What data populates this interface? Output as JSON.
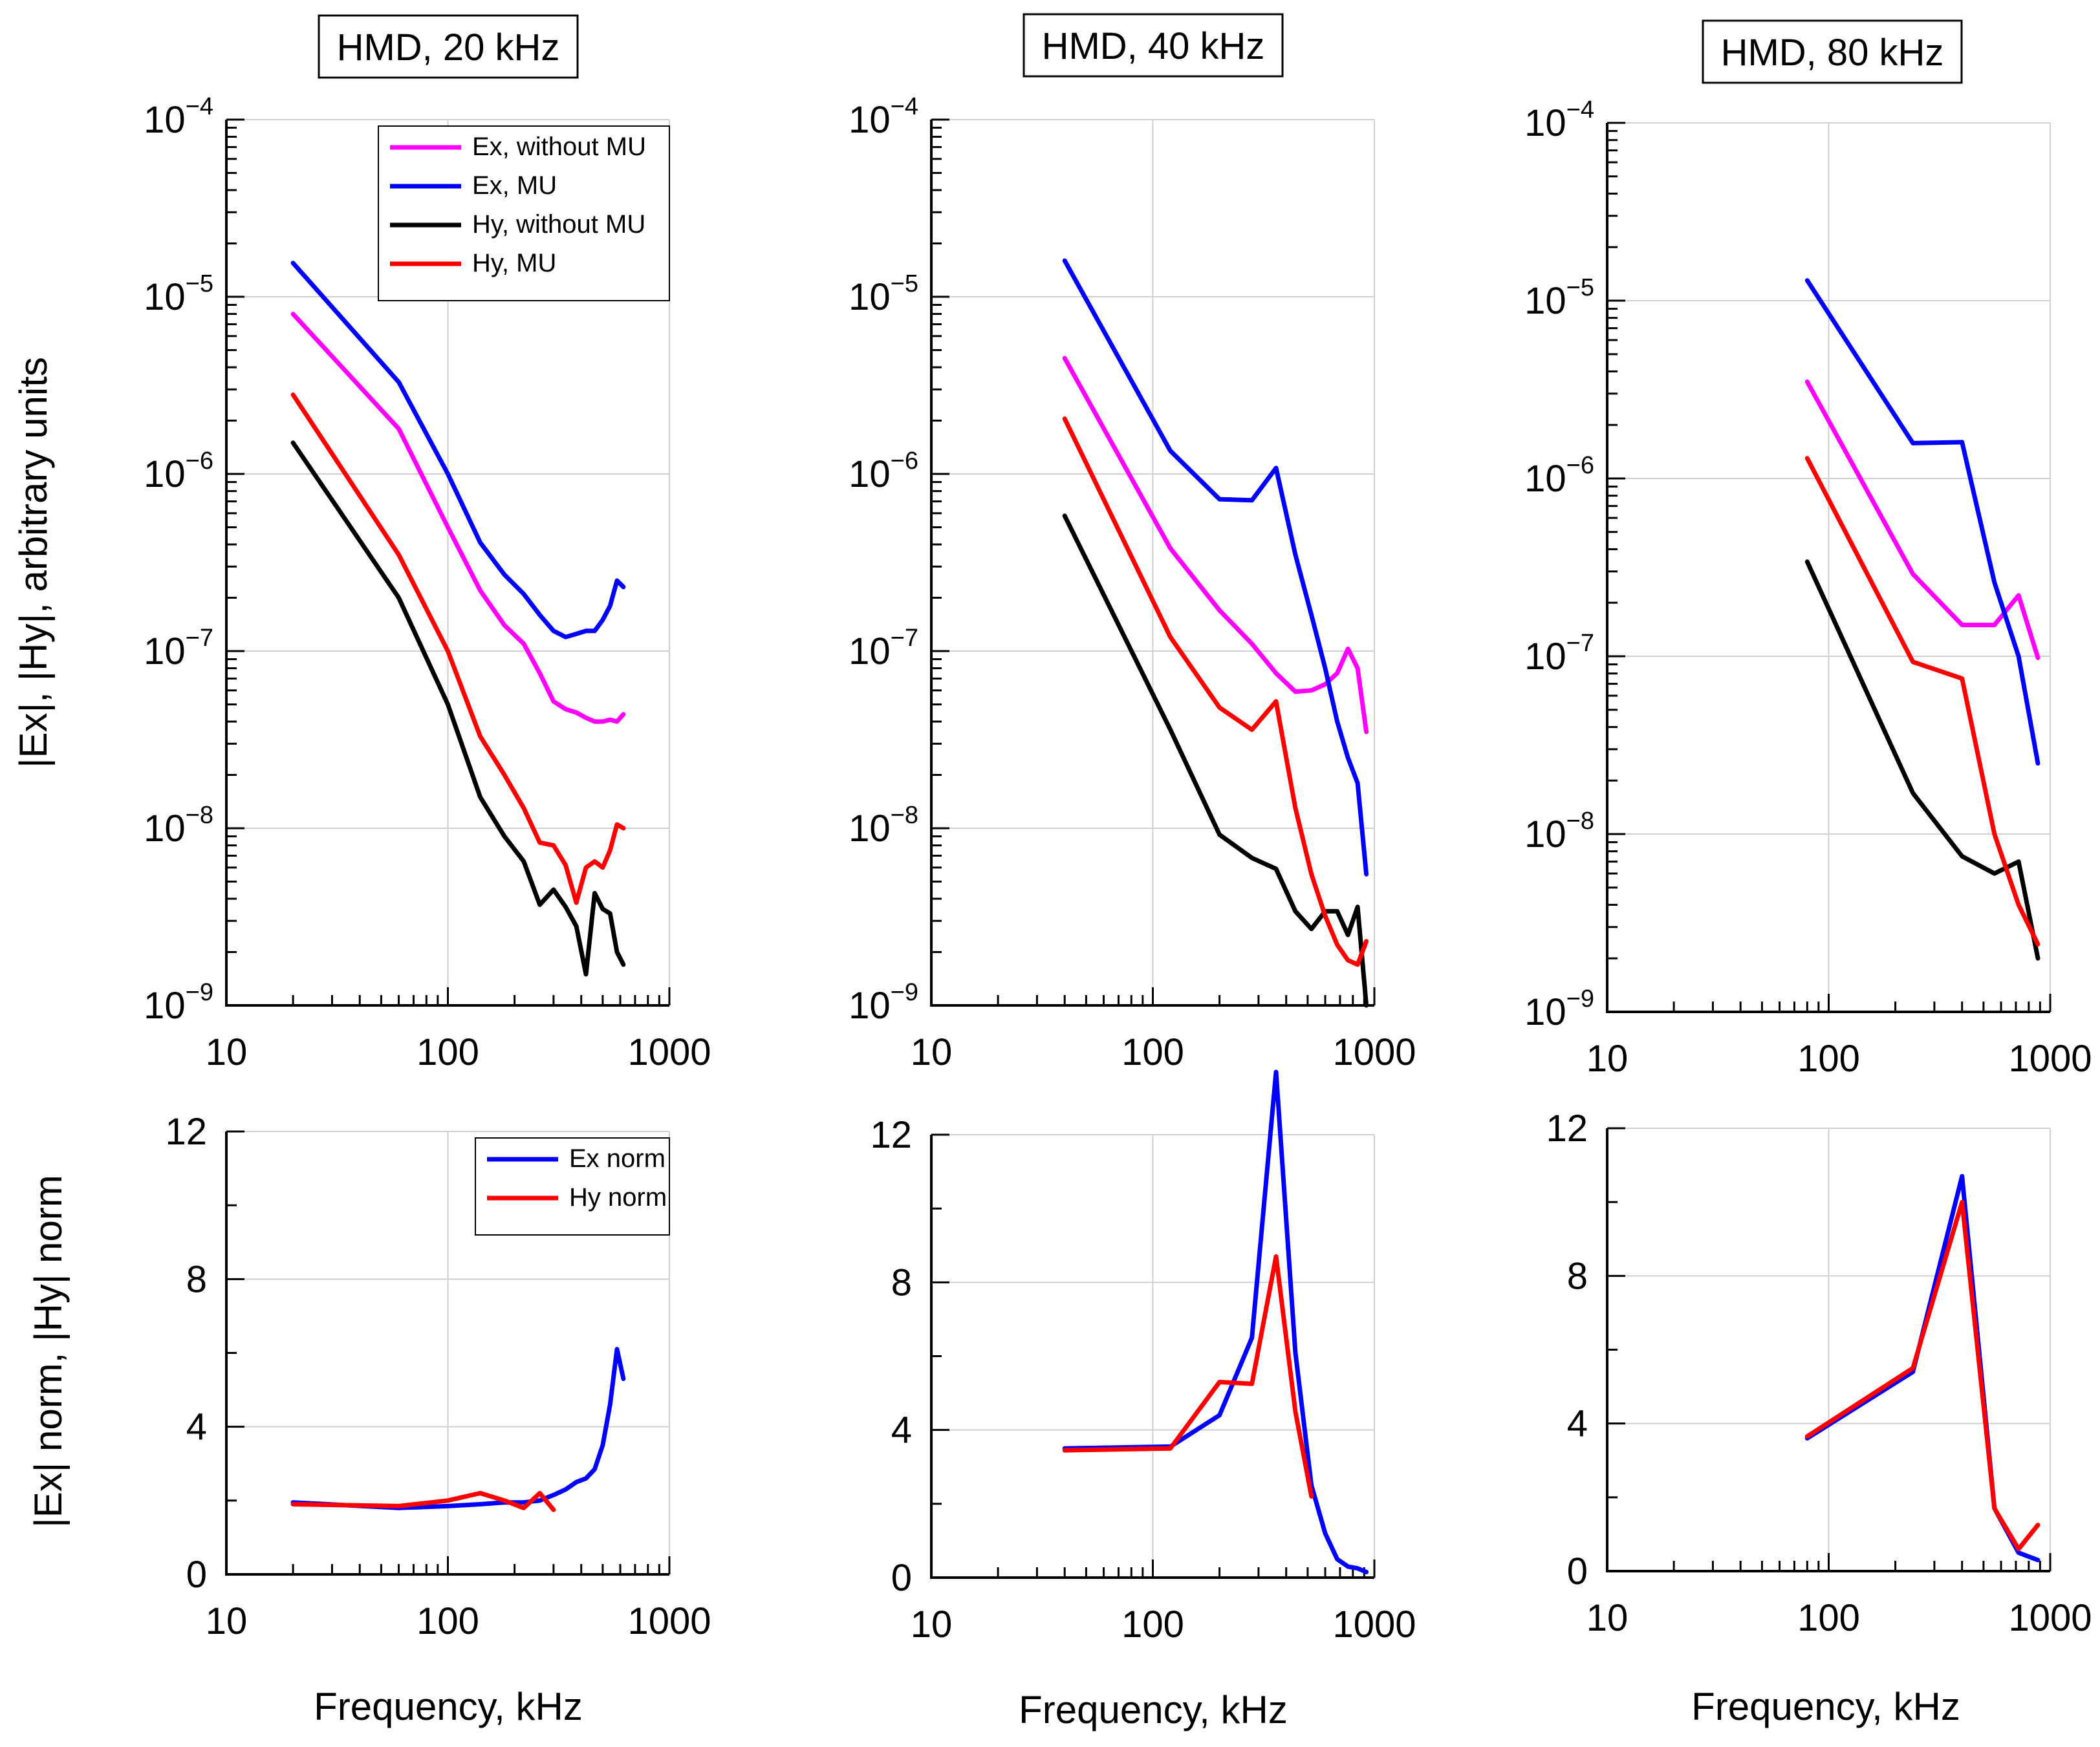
{
  "figure": {
    "titles": [
      "HMD, 20 kHz",
      "HMD, 40 kHz",
      "HMD, 80 kHz"
    ],
    "xlabel": "Frequency, kHz",
    "ylabel_top": "|Ex|, |Hy|, arbitrary units",
    "ylabel_bottom": "|Ex| norm, |Hy| norm"
  },
  "colors": {
    "ex_without_mu": "#ff00ff",
    "ex_mu": "#0000ff",
    "hy_without_mu": "#000000",
    "hy_mu": "#ff0000",
    "ex_norm": "#0000ff",
    "hy_norm": "#ff0000",
    "grid": "#d0d0d0",
    "axis": "#000000"
  },
  "chart_data": [
    {
      "id": "top-20",
      "type": "line",
      "title": "HMD, 20 kHz",
      "xscale": "log",
      "yscale": "log",
      "xlim": [
        10,
        1000
      ],
      "ylim": [
        1e-09,
        0.0001
      ],
      "xticks": [
        "10",
        "100",
        "1000"
      ],
      "yticks": [
        {
          "base": "10",
          "exp": "−9"
        },
        {
          "base": "10",
          "exp": "−8"
        },
        {
          "base": "10",
          "exp": "−7"
        },
        {
          "base": "10",
          "exp": "−6"
        },
        {
          "base": "10",
          "exp": "−5"
        },
        {
          "base": "10",
          "exp": "−4"
        }
      ],
      "xlabel": "",
      "ylabel": "|Ex|, |Hy|, arbitrary units",
      "grid": true,
      "legend": {
        "position": "top-right",
        "entries": [
          "Ex, without MU",
          "Ex, MU",
          "Hy, without MU",
          "Hy, MU"
        ]
      },
      "series": [
        {
          "name": "Ex, without MU",
          "color_key": "ex_without_mu",
          "x": [
            20,
            60,
            100,
            140,
            180,
            220,
            260,
            300,
            340,
            380,
            420,
            460,
            500,
            540,
            580,
            620
          ],
          "y": [
            8e-06,
            1.8e-06,
            5e-07,
            2.2e-07,
            1.4e-07,
            1.1e-07,
            7.5e-08,
            5.2e-08,
            4.7e-08,
            4.5e-08,
            4.2e-08,
            4e-08,
            4e-08,
            4.1e-08,
            4e-08,
            4.4e-08
          ]
        },
        {
          "name": "Ex, MU",
          "color_key": "ex_mu",
          "x": [
            20,
            60,
            100,
            140,
            180,
            220,
            260,
            300,
            340,
            380,
            420,
            460,
            500,
            540,
            580,
            620
          ],
          "y": [
            1.55e-05,
            3.3e-06,
            1e-06,
            4.1e-07,
            2.7e-07,
            2.1e-07,
            1.6e-07,
            1.3e-07,
            1.2e-07,
            1.25e-07,
            1.3e-07,
            1.3e-07,
            1.5e-07,
            1.8e-07,
            2.5e-07,
            2.3e-07
          ]
        },
        {
          "name": "Hy, without MU",
          "color_key": "hy_without_mu",
          "x": [
            20,
            60,
            100,
            140,
            180,
            220,
            260,
            300,
            340,
            380,
            420,
            460,
            500,
            540,
            580,
            620
          ],
          "y": [
            1.5e-06,
            2e-07,
            5e-08,
            1.5e-08,
            9e-09,
            6.5e-09,
            3.7e-09,
            4.5e-09,
            3.6e-09,
            2.8e-09,
            1.5e-09,
            4.3e-09,
            3.5e-09,
            3.3e-09,
            2e-09,
            1.7e-09
          ]
        },
        {
          "name": "Hy, MU",
          "color_key": "hy_mu",
          "x": [
            20,
            60,
            100,
            140,
            180,
            220,
            260,
            300,
            340,
            380,
            420,
            460,
            500,
            540,
            580,
            620
          ],
          "y": [
            2.8e-06,
            3.5e-07,
            1e-07,
            3.3e-08,
            2e-08,
            1.3e-08,
            8.3e-09,
            8e-09,
            6.2e-09,
            3.8e-09,
            6e-09,
            6.5e-09,
            6e-09,
            7.5e-09,
            1.05e-08,
            1e-08
          ]
        }
      ]
    },
    {
      "id": "top-40",
      "type": "line",
      "title": "HMD, 40 kHz",
      "xscale": "log",
      "yscale": "log",
      "xlim": [
        10,
        1000
      ],
      "ylim": [
        1e-09,
        0.0001
      ],
      "xticks": [
        "10",
        "100",
        "1000"
      ],
      "yticks": [
        {
          "base": "10",
          "exp": "−9"
        },
        {
          "base": "10",
          "exp": "−8"
        },
        {
          "base": "10",
          "exp": "−7"
        },
        {
          "base": "10",
          "exp": "−6"
        },
        {
          "base": "10",
          "exp": "−5"
        },
        {
          "base": "10",
          "exp": "−4"
        }
      ],
      "xlabel": "",
      "ylabel": "",
      "grid": true,
      "series": [
        {
          "name": "Ex, without MU",
          "color_key": "ex_without_mu",
          "x": [
            40,
            120,
            200,
            280,
            360,
            440,
            520,
            600,
            680,
            760,
            840,
            920
          ],
          "y": [
            4.5e-06,
            3.8e-07,
            1.7e-07,
            1.1e-07,
            7.5e-08,
            5.9e-08,
            6e-08,
            6.5e-08,
            7.5e-08,
            1.03e-07,
            8e-08,
            3.5e-08
          ]
        },
        {
          "name": "Ex, MU",
          "color_key": "ex_mu",
          "x": [
            40,
            120,
            200,
            280,
            360,
            440,
            520,
            600,
            680,
            760,
            840,
            920
          ],
          "y": [
            1.6e-05,
            1.35e-06,
            7.2e-07,
            7.1e-07,
            1.08e-06,
            3.5e-07,
            1.6e-07,
            8e-08,
            4e-08,
            2.5e-08,
            1.8e-08,
            5.5e-09
          ]
        },
        {
          "name": "Hy, without MU",
          "color_key": "hy_without_mu",
          "x": [
            40,
            120,
            200,
            280,
            360,
            440,
            520,
            600,
            680,
            760,
            840,
            920
          ],
          "y": [
            5.8e-07,
            3.6e-08,
            9.2e-09,
            6.8e-09,
            5.9e-09,
            3.4e-09,
            2.7e-09,
            3.4e-09,
            3.4e-09,
            2.5e-09,
            3.6e-09,
            1e-09
          ]
        },
        {
          "name": "Hy, MU",
          "color_key": "hy_mu",
          "x": [
            40,
            120,
            200,
            280,
            360,
            440,
            520,
            600,
            680,
            760,
            840,
            920
          ],
          "y": [
            2.05e-06,
            1.2e-07,
            4.8e-08,
            3.6e-08,
            5.2e-08,
            1.3e-08,
            5.5e-09,
            3.2e-09,
            2.2e-09,
            1.8e-09,
            1.7e-09,
            2.3e-09
          ]
        }
      ]
    },
    {
      "id": "top-80",
      "type": "line",
      "title": "HMD, 80 kHz",
      "xscale": "log",
      "yscale": "log",
      "xlim": [
        10,
        1000
      ],
      "ylim": [
        1e-09,
        0.0001
      ],
      "xticks": [
        "10",
        "100",
        "1000"
      ],
      "yticks": [
        {
          "base": "10",
          "exp": "−9"
        },
        {
          "base": "10",
          "exp": "−8"
        },
        {
          "base": "10",
          "exp": "−7"
        },
        {
          "base": "10",
          "exp": "−6"
        },
        {
          "base": "10",
          "exp": "−5"
        },
        {
          "base": "10",
          "exp": "−4"
        }
      ],
      "xlabel": "",
      "ylabel": "",
      "grid": true,
      "series": [
        {
          "name": "Ex, without MU",
          "color_key": "ex_without_mu",
          "x": [
            80,
            240,
            400,
            560,
            720,
            880
          ],
          "y": [
            3.5e-06,
            2.9e-07,
            1.5e-07,
            1.5e-07,
            2.2e-07,
            9.8e-08
          ]
        },
        {
          "name": "Ex, MU",
          "color_key": "ex_mu",
          "x": [
            80,
            240,
            400,
            560,
            720,
            880
          ],
          "y": [
            1.3e-05,
            1.58e-06,
            1.6e-06,
            2.6e-07,
            1e-07,
            2.5e-08
          ]
        },
        {
          "name": "Hy, without MU",
          "color_key": "hy_without_mu",
          "x": [
            80,
            240,
            400,
            560,
            720,
            880
          ],
          "y": [
            3.4e-07,
            1.7e-08,
            7.5e-09,
            6e-09,
            7e-09,
            2e-09
          ]
        },
        {
          "name": "Hy, MU",
          "color_key": "hy_mu",
          "x": [
            80,
            240,
            400,
            560,
            720,
            880
          ],
          "y": [
            1.3e-06,
            9.3e-08,
            7.5e-08,
            1e-08,
            4e-09,
            2.4e-09
          ]
        }
      ]
    },
    {
      "id": "bottom-20",
      "type": "line",
      "xscale": "log",
      "yscale": "linear",
      "xlim": [
        10,
        1000
      ],
      "ylim": [
        0,
        12
      ],
      "xticks": [
        "10",
        "100",
        "1000"
      ],
      "yticks": [
        "0",
        "4",
        "8",
        "12"
      ],
      "xlabel": "Frequency, kHz",
      "ylabel": "|Ex| norm, |Hy| norm",
      "grid": true,
      "legend": {
        "position": "top-right",
        "entries": [
          "Ex norm",
          "Hy norm"
        ]
      },
      "series": [
        {
          "name": "Ex norm",
          "color_key": "ex_norm",
          "x": [
            20,
            60,
            100,
            140,
            180,
            220,
            260,
            300,
            340,
            380,
            420,
            460,
            500,
            540,
            580,
            620
          ],
          "y": [
            1.95,
            1.8,
            1.85,
            1.9,
            1.95,
            1.95,
            2.0,
            2.15,
            2.3,
            2.5,
            2.6,
            2.85,
            3.5,
            4.6,
            6.1,
            5.3
          ]
        },
        {
          "name": "Hy norm",
          "color_key": "hy_norm",
          "x": [
            20,
            60,
            100,
            140,
            180,
            220,
            260,
            300
          ],
          "y": [
            1.9,
            1.85,
            2.0,
            2.2,
            2.0,
            1.8,
            2.2,
            1.75
          ]
        }
      ]
    },
    {
      "id": "bottom-40",
      "type": "line",
      "xscale": "log",
      "yscale": "linear",
      "xlim": [
        10,
        1000
      ],
      "ylim": [
        0,
        12
      ],
      "xticks": [
        "10",
        "100",
        "1000"
      ],
      "yticks": [
        "0",
        "4",
        "8",
        "12"
      ],
      "xlabel": "Frequency, kHz",
      "ylabel": "",
      "grid": true,
      "series": [
        {
          "name": "Ex norm",
          "color_key": "ex_norm",
          "x": [
            40,
            120,
            200,
            280,
            360,
            440,
            520,
            600,
            680,
            760,
            840,
            920
          ],
          "y": [
            3.5,
            3.55,
            4.4,
            6.5,
            13.7,
            6.1,
            2.5,
            1.2,
            0.5,
            0.3,
            0.25,
            0.15
          ]
        },
        {
          "name": "Hy norm",
          "color_key": "hy_norm",
          "x": [
            40,
            120,
            200,
            280,
            360,
            440,
            520
          ],
          "y": [
            3.45,
            3.5,
            5.3,
            5.25,
            8.7,
            4.5,
            2.2
          ]
        }
      ]
    },
    {
      "id": "bottom-80",
      "type": "line",
      "xscale": "log",
      "yscale": "linear",
      "xlim": [
        10,
        1000
      ],
      "ylim": [
        0,
        12
      ],
      "xticks": [
        "10",
        "100",
        "1000"
      ],
      "yticks": [
        "0",
        "4",
        "8",
        "12"
      ],
      "xlabel": "Frequency, kHz",
      "ylabel": "",
      "grid": true,
      "series": [
        {
          "name": "Ex norm",
          "color_key": "ex_norm",
          "x": [
            80,
            240,
            400,
            560,
            720,
            880
          ],
          "y": [
            3.6,
            5.4,
            10.7,
            1.7,
            0.5,
            0.3
          ]
        },
        {
          "name": "Hy norm",
          "color_key": "hy_norm",
          "x": [
            80,
            240,
            400,
            560,
            720,
            880
          ],
          "y": [
            3.65,
            5.5,
            10.0,
            1.7,
            0.6,
            1.25
          ]
        }
      ]
    }
  ]
}
